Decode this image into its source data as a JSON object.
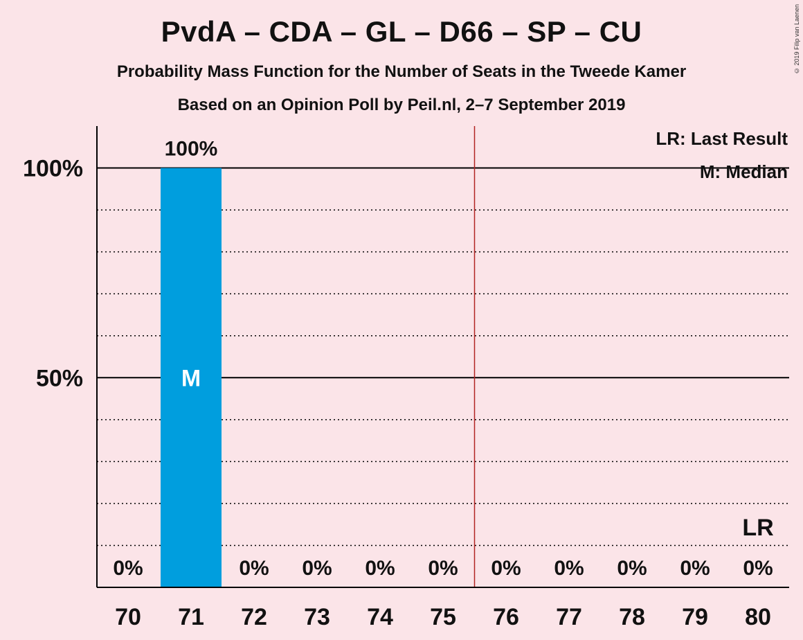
{
  "title": "PvdA – CDA – GL – D66 – SP – CU",
  "subtitle1": "Probability Mass Function for the Number of Seats in the Tweede Kamer",
  "subtitle2": "Based on an Opinion Poll by Peil.nl, 2–7 September 2019",
  "copyright": "© 2019 Filip van Laenen",
  "legend": {
    "lr": "LR: Last Result",
    "m": "M: Median"
  },
  "chart_data": {
    "type": "bar",
    "categories": [
      "70",
      "71",
      "72",
      "73",
      "74",
      "75",
      "76",
      "77",
      "78",
      "79",
      "80"
    ],
    "values": [
      0,
      100,
      0,
      0,
      0,
      0,
      0,
      0,
      0,
      0,
      0
    ],
    "value_labels": [
      "0%",
      "100%",
      "0%",
      "0%",
      "0%",
      "0%",
      "0%",
      "0%",
      "0%",
      "0%",
      "0%"
    ],
    "ylim": [
      0,
      110
    ],
    "yticks": [
      {
        "value": 50,
        "label": "50%"
      },
      {
        "value": 100,
        "label": "100%"
      }
    ],
    "minor_gridlines": [
      10,
      20,
      30,
      40,
      60,
      70,
      80,
      90
    ],
    "median_seat": "71",
    "median_marker": "M",
    "last_result_seat": "80",
    "last_result_marker": "LR",
    "majority_line_after": "75",
    "bar_color": "#009ede",
    "majority_line_color": "#b22222"
  }
}
